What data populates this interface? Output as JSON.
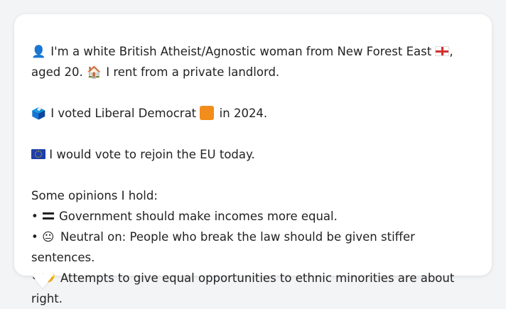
{
  "profile": {
    "line1_before_flag": "I'm a white British Atheist/Agnostic woman from New Forest East",
    "line1_after_flag": ",",
    "line2_before_house": "aged 20.",
    "line2_after_house": "I rent from a private landlord.",
    "person_icon_glyph": "👤",
    "house_icon_glyph": "🏠"
  },
  "vote": {
    "ballot_icon_glyph": "🗳️",
    "before": "I voted Liberal Democrat",
    "after": "in 2024.",
    "party_color": "#f28c1b"
  },
  "eu": {
    "text": "I would vote to rejoin the EU today."
  },
  "opinions": {
    "heading": "Some opinions I hold:",
    "bullet": "•",
    "items": [
      {
        "icon": "equals-icon",
        "text": "Government should make incomes more equal."
      },
      {
        "icon": "neutral-face-icon",
        "glyph": "😐",
        "text": "Neutral on: People who break the law should be given stiffer sentences."
      },
      {
        "icon": "handshake-icon",
        "glyph": "🤝",
        "text": "Attempts to give equal opportunities to ethnic minorities are about right."
      }
    ]
  }
}
